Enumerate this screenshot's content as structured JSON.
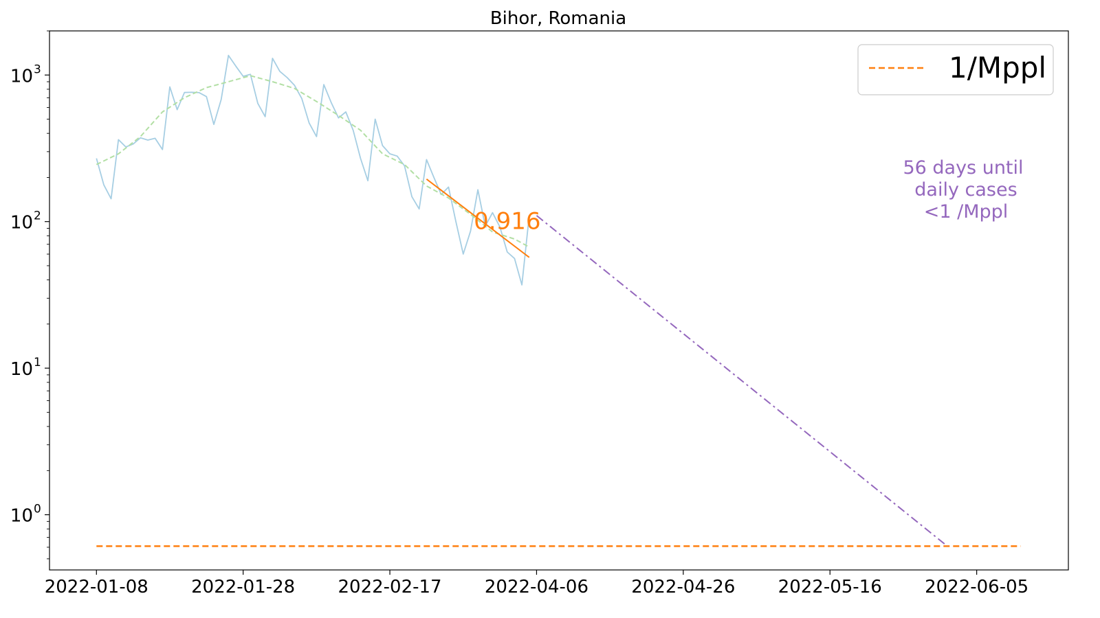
{
  "chart_data": {
    "type": "line",
    "title": "Bihor, Romania",
    "xlabel": "",
    "ylabel": "",
    "yscale": "log",
    "ylim": [
      0.42,
      2000
    ],
    "x_tick_labels": [
      "2022-01-08",
      "2022-01-28",
      "2022-02-17",
      "2022-04-06",
      "2022-04-26",
      "2022-05-16",
      "2022-06-05"
    ],
    "y_tick_labels": [
      {
        "base": "10",
        "exp": "0",
        "value": 1
      },
      {
        "base": "10",
        "exp": "1",
        "value": 10
      },
      {
        "base": "10",
        "exp": "2",
        "value": 100
      },
      {
        "base": "10",
        "exp": "3",
        "value": 1000
      }
    ],
    "x_tick_index": [
      0,
      20,
      40,
      60,
      80,
      100,
      120
    ],
    "xlim_index": [
      -6.4,
      132.5
    ],
    "grid": false,
    "legend": {
      "position": "upper right",
      "entries": [
        {
          "name": "1/Mppl",
          "color": "#ff7f0e",
          "style": "dashed"
        }
      ]
    },
    "series": [
      {
        "style": "solid",
        "color": "#a6cee3",
        "index": [
          0,
          1,
          2,
          3,
          4,
          5,
          6,
          7,
          8,
          9,
          10,
          11,
          12,
          13,
          14,
          15,
          16,
          17,
          18,
          19,
          20,
          21,
          22,
          23,
          24,
          25,
          26,
          27,
          28,
          29,
          30,
          31,
          32,
          33,
          34,
          35,
          36,
          37,
          38,
          39,
          40,
          41,
          42,
          43,
          44,
          45,
          46,
          47,
          48,
          49,
          50,
          51,
          52,
          53,
          54,
          55,
          56,
          57,
          58,
          59
        ],
        "values": [
          270,
          178,
          143,
          362,
          323,
          338,
          373,
          360,
          370,
          310,
          830,
          580,
          760,
          762,
          758,
          712,
          460,
          680,
          1360,
          1150,
          980,
          1010,
          640,
          520,
          1300,
          1060,
          960,
          850,
          690,
          470,
          380,
          860,
          650,
          510,
          560,
          420,
          270,
          190,
          500,
          330,
          290,
          280,
          240,
          148,
          122,
          265,
          200,
          153,
          172,
          100,
          60,
          86,
          165,
          93,
          115,
          92,
          62,
          56,
          37,
          110
        ]
      },
      {
        "style": "dashed",
        "color": "#b2dfa4",
        "index": [
          0,
          3,
          6,
          9,
          12,
          15,
          18,
          21,
          24,
          27,
          30,
          33,
          36,
          39,
          42,
          45,
          48,
          51,
          54,
          57,
          59
        ],
        "values": [
          245,
          290,
          380,
          560,
          700,
          820,
          900,
          990,
          900,
          810,
          660,
          530,
          420,
          290,
          245,
          175,
          145,
          112,
          85,
          76,
          67
        ]
      },
      {
        "name": "fit",
        "style": "solid",
        "color": "#ff7f0e",
        "index": [
          45,
          59
        ],
        "values": [
          195,
          57
        ]
      },
      {
        "name": "1/Mppl",
        "style": "dashed",
        "color": "#ff7f0e",
        "index": [
          0,
          126
        ],
        "values": [
          0.61,
          0.61
        ]
      },
      {
        "name": "projection",
        "style": "dashdot",
        "color": "#9467bd",
        "index": [
          60,
          116
        ],
        "values": [
          110,
          0.61
        ]
      }
    ],
    "annotations": [
      {
        "text": "0.916",
        "color": "#ff7f0e",
        "x_index": 56,
        "y": 100
      },
      {
        "lines": [
          "56 days until",
          "daily cases",
          "<1 /Mppl"
        ],
        "color": "#9467bd"
      }
    ]
  }
}
